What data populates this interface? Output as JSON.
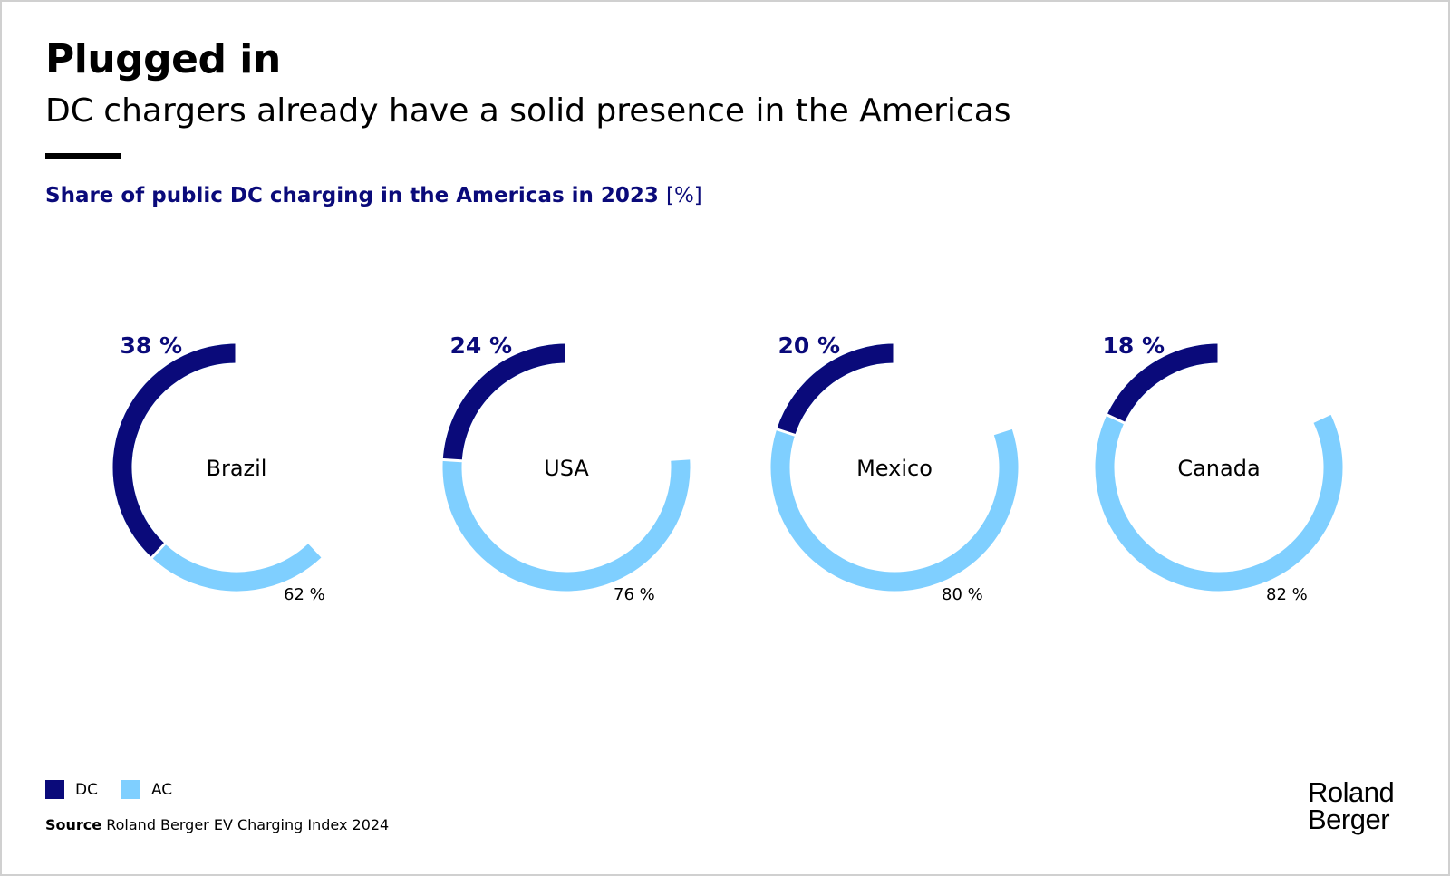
{
  "header": {
    "title": "Plugged in",
    "subtitle": "DC chargers already have a solid presence in the Americas"
  },
  "chart_data": {
    "type": "pie",
    "title": "Share of public DC charging in the Americas in 2023",
    "unit": "[%]",
    "categories": [
      "Brazil",
      "USA",
      "Mexico",
      "Canada"
    ],
    "series": [
      {
        "name": "DC",
        "values": [
          38,
          24,
          20,
          18
        ],
        "color": "#0a0a7a"
      },
      {
        "name": "AC",
        "values": [
          62,
          76,
          80,
          82
        ],
        "color": "#7fcfff"
      }
    ],
    "dc_labels": [
      "38 %",
      "24 %",
      "20 %",
      "18 %"
    ],
    "ac_labels": [
      "62 %",
      "76 %",
      "80 %",
      "82 %"
    ],
    "legend": "bottom-left"
  },
  "legend": {
    "dc_label": "DC",
    "ac_label": "AC",
    "dc_color": "#0a0a7a",
    "ac_color": "#7fcfff"
  },
  "footer": {
    "source_label": "Source",
    "source_text": "Roland Berger EV Charging Index 2024",
    "logo_line1": "Roland",
    "logo_line2": "Berger"
  }
}
